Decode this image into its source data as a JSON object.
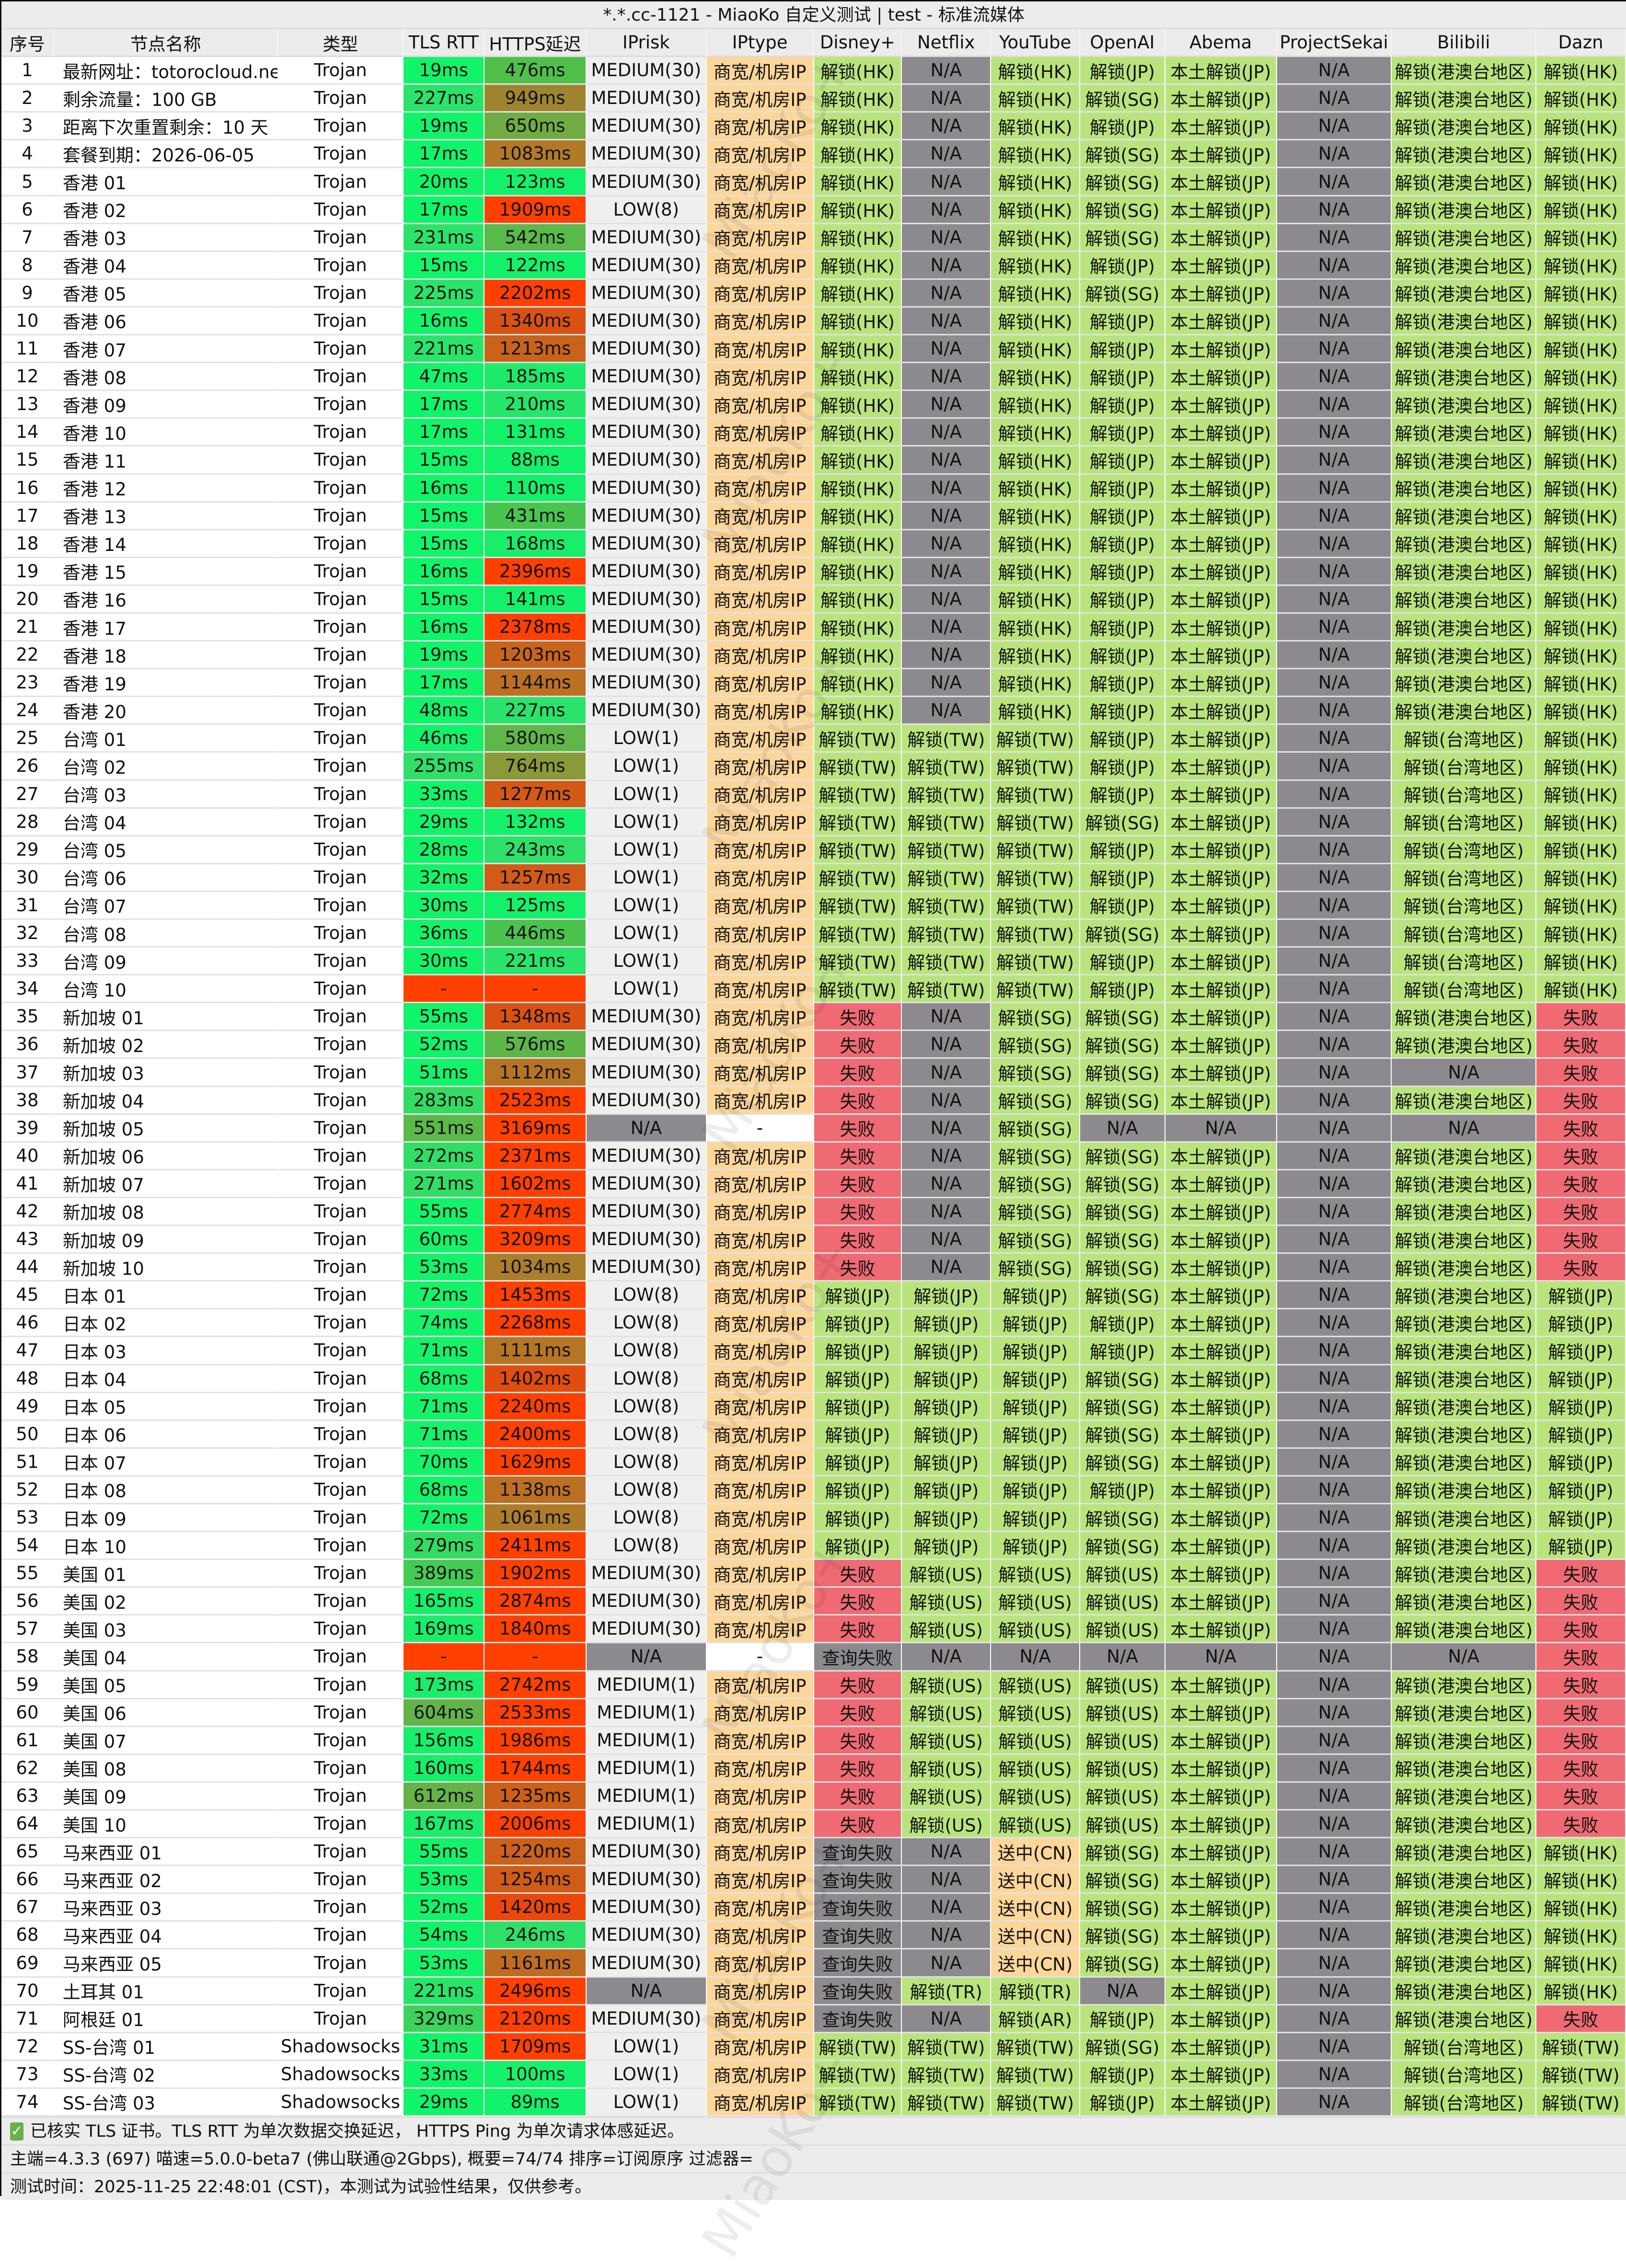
{
  "window_title": "*.*.cc-1121 - MiaoKo 自定义测试 | test - 标准流媒体",
  "watermark": "MiaoKo+",
  "colors": {
    "unlock": "#b9e47d",
    "na": "#8c8a8e",
    "fail": "#ef6a73",
    "iptype": "#fdd699",
    "iprisk": "#efefef",
    "latency_fast": "#10f56a",
    "latency_slow": "#ff4000",
    "check": "#6ab04c"
  },
  "columns": [
    "序号",
    "节点名称",
    "类型",
    "TLS RTT",
    "HTTPS延迟",
    "IPrisk",
    "IPtype",
    "Disney+",
    "Netflix",
    "YouTube",
    "OpenAI",
    "Abema",
    "ProjectSekai",
    "Bilibili",
    "Dazn"
  ],
  "rows": [
    [
      "1",
      "最新网址：totorocloud.net",
      "Trojan",
      "19ms",
      "476ms",
      "MEDIUM(30)",
      "商宽/机房IP",
      "解锁(HK)",
      "N/A",
      "解锁(HK)",
      "解锁(JP)",
      "本土解锁(JP)",
      "N/A",
      "解锁(港澳台地区)",
      "解锁(HK)"
    ],
    [
      "2",
      "剩余流量：100 GB",
      "Trojan",
      "227ms",
      "949ms",
      "MEDIUM(30)",
      "商宽/机房IP",
      "解锁(HK)",
      "N/A",
      "解锁(HK)",
      "解锁(SG)",
      "本土解锁(JP)",
      "N/A",
      "解锁(港澳台地区)",
      "解锁(HK)"
    ],
    [
      "3",
      "距离下次重置剩余：10 天",
      "Trojan",
      "19ms",
      "650ms",
      "MEDIUM(30)",
      "商宽/机房IP",
      "解锁(HK)",
      "N/A",
      "解锁(HK)",
      "解锁(JP)",
      "本土解锁(JP)",
      "N/A",
      "解锁(港澳台地区)",
      "解锁(HK)"
    ],
    [
      "4",
      "套餐到期：2026-06-05",
      "Trojan",
      "17ms",
      "1083ms",
      "MEDIUM(30)",
      "商宽/机房IP",
      "解锁(HK)",
      "N/A",
      "解锁(HK)",
      "解锁(SG)",
      "本土解锁(JP)",
      "N/A",
      "解锁(港澳台地区)",
      "解锁(HK)"
    ],
    [
      "5",
      "香港 01",
      "Trojan",
      "20ms",
      "123ms",
      "MEDIUM(30)",
      "商宽/机房IP",
      "解锁(HK)",
      "N/A",
      "解锁(HK)",
      "解锁(SG)",
      "本土解锁(JP)",
      "N/A",
      "解锁(港澳台地区)",
      "解锁(HK)"
    ],
    [
      "6",
      "香港 02",
      "Trojan",
      "17ms",
      "1909ms",
      "LOW(8)",
      "商宽/机房IP",
      "解锁(HK)",
      "N/A",
      "解锁(HK)",
      "解锁(SG)",
      "本土解锁(JP)",
      "N/A",
      "解锁(港澳台地区)",
      "解锁(HK)"
    ],
    [
      "7",
      "香港 03",
      "Trojan",
      "231ms",
      "542ms",
      "MEDIUM(30)",
      "商宽/机房IP",
      "解锁(HK)",
      "N/A",
      "解锁(HK)",
      "解锁(SG)",
      "本土解锁(JP)",
      "N/A",
      "解锁(港澳台地区)",
      "解锁(HK)"
    ],
    [
      "8",
      "香港 04",
      "Trojan",
      "15ms",
      "122ms",
      "MEDIUM(30)",
      "商宽/机房IP",
      "解锁(HK)",
      "N/A",
      "解锁(HK)",
      "解锁(JP)",
      "本土解锁(JP)",
      "N/A",
      "解锁(港澳台地区)",
      "解锁(HK)"
    ],
    [
      "9",
      "香港 05",
      "Trojan",
      "225ms",
      "2202ms",
      "MEDIUM(30)",
      "商宽/机房IP",
      "解锁(HK)",
      "N/A",
      "解锁(HK)",
      "解锁(SG)",
      "本土解锁(JP)",
      "N/A",
      "解锁(港澳台地区)",
      "解锁(HK)"
    ],
    [
      "10",
      "香港 06",
      "Trojan",
      "16ms",
      "1340ms",
      "MEDIUM(30)",
      "商宽/机房IP",
      "解锁(HK)",
      "N/A",
      "解锁(HK)",
      "解锁(JP)",
      "本土解锁(JP)",
      "N/A",
      "解锁(港澳台地区)",
      "解锁(HK)"
    ],
    [
      "11",
      "香港 07",
      "Trojan",
      "221ms",
      "1213ms",
      "MEDIUM(30)",
      "商宽/机房IP",
      "解锁(HK)",
      "N/A",
      "解锁(HK)",
      "解锁(JP)",
      "本土解锁(JP)",
      "N/A",
      "解锁(港澳台地区)",
      "解锁(HK)"
    ],
    [
      "12",
      "香港 08",
      "Trojan",
      "47ms",
      "185ms",
      "MEDIUM(30)",
      "商宽/机房IP",
      "解锁(HK)",
      "N/A",
      "解锁(HK)",
      "解锁(JP)",
      "本土解锁(JP)",
      "N/A",
      "解锁(港澳台地区)",
      "解锁(HK)"
    ],
    [
      "13",
      "香港 09",
      "Trojan",
      "17ms",
      "210ms",
      "MEDIUM(30)",
      "商宽/机房IP",
      "解锁(HK)",
      "N/A",
      "解锁(HK)",
      "解锁(JP)",
      "本土解锁(JP)",
      "N/A",
      "解锁(港澳台地区)",
      "解锁(HK)"
    ],
    [
      "14",
      "香港 10",
      "Trojan",
      "17ms",
      "131ms",
      "MEDIUM(30)",
      "商宽/机房IP",
      "解锁(HK)",
      "N/A",
      "解锁(HK)",
      "解锁(JP)",
      "本土解锁(JP)",
      "N/A",
      "解锁(港澳台地区)",
      "解锁(HK)"
    ],
    [
      "15",
      "香港 11",
      "Trojan",
      "15ms",
      "88ms",
      "MEDIUM(30)",
      "商宽/机房IP",
      "解锁(HK)",
      "N/A",
      "解锁(HK)",
      "解锁(JP)",
      "本土解锁(JP)",
      "N/A",
      "解锁(港澳台地区)",
      "解锁(HK)"
    ],
    [
      "16",
      "香港 12",
      "Trojan",
      "16ms",
      "110ms",
      "MEDIUM(30)",
      "商宽/机房IP",
      "解锁(HK)",
      "N/A",
      "解锁(HK)",
      "解锁(JP)",
      "本土解锁(JP)",
      "N/A",
      "解锁(港澳台地区)",
      "解锁(HK)"
    ],
    [
      "17",
      "香港 13",
      "Trojan",
      "15ms",
      "431ms",
      "MEDIUM(30)",
      "商宽/机房IP",
      "解锁(HK)",
      "N/A",
      "解锁(HK)",
      "解锁(JP)",
      "本土解锁(JP)",
      "N/A",
      "解锁(港澳台地区)",
      "解锁(HK)"
    ],
    [
      "18",
      "香港 14",
      "Trojan",
      "15ms",
      "168ms",
      "MEDIUM(30)",
      "商宽/机房IP",
      "解锁(HK)",
      "N/A",
      "解锁(HK)",
      "解锁(JP)",
      "本土解锁(JP)",
      "N/A",
      "解锁(港澳台地区)",
      "解锁(HK)"
    ],
    [
      "19",
      "香港 15",
      "Trojan",
      "16ms",
      "2396ms",
      "MEDIUM(30)",
      "商宽/机房IP",
      "解锁(HK)",
      "N/A",
      "解锁(HK)",
      "解锁(JP)",
      "本土解锁(JP)",
      "N/A",
      "解锁(港澳台地区)",
      "解锁(HK)"
    ],
    [
      "20",
      "香港 16",
      "Trojan",
      "15ms",
      "141ms",
      "MEDIUM(30)",
      "商宽/机房IP",
      "解锁(HK)",
      "N/A",
      "解锁(HK)",
      "解锁(JP)",
      "本土解锁(JP)",
      "N/A",
      "解锁(港澳台地区)",
      "解锁(HK)"
    ],
    [
      "21",
      "香港 17",
      "Trojan",
      "16ms",
      "2378ms",
      "MEDIUM(30)",
      "商宽/机房IP",
      "解锁(HK)",
      "N/A",
      "解锁(HK)",
      "解锁(JP)",
      "本土解锁(JP)",
      "N/A",
      "解锁(港澳台地区)",
      "解锁(HK)"
    ],
    [
      "22",
      "香港 18",
      "Trojan",
      "19ms",
      "1203ms",
      "MEDIUM(30)",
      "商宽/机房IP",
      "解锁(HK)",
      "N/A",
      "解锁(HK)",
      "解锁(JP)",
      "本土解锁(JP)",
      "N/A",
      "解锁(港澳台地区)",
      "解锁(HK)"
    ],
    [
      "23",
      "香港 19",
      "Trojan",
      "17ms",
      "1144ms",
      "MEDIUM(30)",
      "商宽/机房IP",
      "解锁(HK)",
      "N/A",
      "解锁(HK)",
      "解锁(JP)",
      "本土解锁(JP)",
      "N/A",
      "解锁(港澳台地区)",
      "解锁(HK)"
    ],
    [
      "24",
      "香港 20",
      "Trojan",
      "48ms",
      "227ms",
      "MEDIUM(30)",
      "商宽/机房IP",
      "解锁(HK)",
      "N/A",
      "解锁(HK)",
      "解锁(JP)",
      "本土解锁(JP)",
      "N/A",
      "解锁(港澳台地区)",
      "解锁(HK)"
    ],
    [
      "25",
      "台湾 01",
      "Trojan",
      "46ms",
      "580ms",
      "LOW(1)",
      "商宽/机房IP",
      "解锁(TW)",
      "解锁(TW)",
      "解锁(TW)",
      "解锁(JP)",
      "本土解锁(JP)",
      "N/A",
      "解锁(台湾地区)",
      "解锁(HK)"
    ],
    [
      "26",
      "台湾 02",
      "Trojan",
      "255ms",
      "764ms",
      "LOW(1)",
      "商宽/机房IP",
      "解锁(TW)",
      "解锁(TW)",
      "解锁(TW)",
      "解锁(JP)",
      "本土解锁(JP)",
      "N/A",
      "解锁(台湾地区)",
      "解锁(HK)"
    ],
    [
      "27",
      "台湾 03",
      "Trojan",
      "33ms",
      "1277ms",
      "LOW(1)",
      "商宽/机房IP",
      "解锁(TW)",
      "解锁(TW)",
      "解锁(TW)",
      "解锁(JP)",
      "本土解锁(JP)",
      "N/A",
      "解锁(台湾地区)",
      "解锁(HK)"
    ],
    [
      "28",
      "台湾 04",
      "Trojan",
      "29ms",
      "132ms",
      "LOW(1)",
      "商宽/机房IP",
      "解锁(TW)",
      "解锁(TW)",
      "解锁(TW)",
      "解锁(SG)",
      "本土解锁(JP)",
      "N/A",
      "解锁(台湾地区)",
      "解锁(HK)"
    ],
    [
      "29",
      "台湾 05",
      "Trojan",
      "28ms",
      "243ms",
      "LOW(1)",
      "商宽/机房IP",
      "解锁(TW)",
      "解锁(TW)",
      "解锁(TW)",
      "解锁(JP)",
      "本土解锁(JP)",
      "N/A",
      "解锁(台湾地区)",
      "解锁(HK)"
    ],
    [
      "30",
      "台湾 06",
      "Trojan",
      "32ms",
      "1257ms",
      "LOW(1)",
      "商宽/机房IP",
      "解锁(TW)",
      "解锁(TW)",
      "解锁(TW)",
      "解锁(JP)",
      "本土解锁(JP)",
      "N/A",
      "解锁(台湾地区)",
      "解锁(HK)"
    ],
    [
      "31",
      "台湾 07",
      "Trojan",
      "30ms",
      "125ms",
      "LOW(1)",
      "商宽/机房IP",
      "解锁(TW)",
      "解锁(TW)",
      "解锁(TW)",
      "解锁(JP)",
      "本土解锁(JP)",
      "N/A",
      "解锁(台湾地区)",
      "解锁(HK)"
    ],
    [
      "32",
      "台湾 08",
      "Trojan",
      "36ms",
      "446ms",
      "LOW(1)",
      "商宽/机房IP",
      "解锁(TW)",
      "解锁(TW)",
      "解锁(TW)",
      "解锁(SG)",
      "本土解锁(JP)",
      "N/A",
      "解锁(台湾地区)",
      "解锁(HK)"
    ],
    [
      "33",
      "台湾 09",
      "Trojan",
      "30ms",
      "221ms",
      "LOW(1)",
      "商宽/机房IP",
      "解锁(TW)",
      "解锁(TW)",
      "解锁(TW)",
      "解锁(JP)",
      "本土解锁(JP)",
      "N/A",
      "解锁(台湾地区)",
      "解锁(HK)"
    ],
    [
      "34",
      "台湾 10",
      "Trojan",
      "-",
      "-",
      "LOW(1)",
      "商宽/机房IP",
      "解锁(TW)",
      "解锁(TW)",
      "解锁(TW)",
      "解锁(JP)",
      "本土解锁(JP)",
      "N/A",
      "解锁(台湾地区)",
      "解锁(HK)"
    ],
    [
      "35",
      "新加坡 01",
      "Trojan",
      "55ms",
      "1348ms",
      "MEDIUM(30)",
      "商宽/机房IP",
      "失败",
      "N/A",
      "解锁(SG)",
      "解锁(SG)",
      "本土解锁(JP)",
      "N/A",
      "解锁(港澳台地区)",
      "失败"
    ],
    [
      "36",
      "新加坡 02",
      "Trojan",
      "52ms",
      "576ms",
      "MEDIUM(30)",
      "商宽/机房IP",
      "失败",
      "N/A",
      "解锁(SG)",
      "解锁(SG)",
      "本土解锁(JP)",
      "N/A",
      "解锁(港澳台地区)",
      "失败"
    ],
    [
      "37",
      "新加坡 03",
      "Trojan",
      "51ms",
      "1112ms",
      "MEDIUM(30)",
      "商宽/机房IP",
      "失败",
      "N/A",
      "解锁(SG)",
      "解锁(SG)",
      "本土解锁(JP)",
      "N/A",
      "N/A",
      "失败"
    ],
    [
      "38",
      "新加坡 04",
      "Trojan",
      "283ms",
      "2523ms",
      "MEDIUM(30)",
      "商宽/机房IP",
      "失败",
      "N/A",
      "解锁(SG)",
      "解锁(SG)",
      "本土解锁(JP)",
      "N/A",
      "解锁(港澳台地区)",
      "失败"
    ],
    [
      "39",
      "新加坡 05",
      "Trojan",
      "551ms",
      "3169ms",
      "N/A",
      "-",
      "失败",
      "N/A",
      "解锁(SG)",
      "N/A",
      "N/A",
      "N/A",
      "N/A",
      "失败"
    ],
    [
      "40",
      "新加坡 06",
      "Trojan",
      "272ms",
      "2371ms",
      "MEDIUM(30)",
      "商宽/机房IP",
      "失败",
      "N/A",
      "解锁(SG)",
      "解锁(SG)",
      "本土解锁(JP)",
      "N/A",
      "解锁(港澳台地区)",
      "失败"
    ],
    [
      "41",
      "新加坡 07",
      "Trojan",
      "271ms",
      "1602ms",
      "MEDIUM(30)",
      "商宽/机房IP",
      "失败",
      "N/A",
      "解锁(SG)",
      "解锁(SG)",
      "本土解锁(JP)",
      "N/A",
      "解锁(港澳台地区)",
      "失败"
    ],
    [
      "42",
      "新加坡 08",
      "Trojan",
      "55ms",
      "2774ms",
      "MEDIUM(30)",
      "商宽/机房IP",
      "失败",
      "N/A",
      "解锁(SG)",
      "解锁(SG)",
      "本土解锁(JP)",
      "N/A",
      "解锁(港澳台地区)",
      "失败"
    ],
    [
      "43",
      "新加坡 09",
      "Trojan",
      "60ms",
      "3209ms",
      "MEDIUM(30)",
      "商宽/机房IP",
      "失败",
      "N/A",
      "解锁(SG)",
      "解锁(SG)",
      "本土解锁(JP)",
      "N/A",
      "解锁(港澳台地区)",
      "失败"
    ],
    [
      "44",
      "新加坡 10",
      "Trojan",
      "53ms",
      "1034ms",
      "MEDIUM(30)",
      "商宽/机房IP",
      "失败",
      "N/A",
      "解锁(SG)",
      "解锁(SG)",
      "本土解锁(JP)",
      "N/A",
      "解锁(港澳台地区)",
      "失败"
    ],
    [
      "45",
      "日本 01",
      "Trojan",
      "72ms",
      "1453ms",
      "LOW(8)",
      "商宽/机房IP",
      "解锁(JP)",
      "解锁(JP)",
      "解锁(JP)",
      "解锁(SG)",
      "本土解锁(JP)",
      "N/A",
      "解锁(港澳台地区)",
      "解锁(JP)"
    ],
    [
      "46",
      "日本 02",
      "Trojan",
      "74ms",
      "2268ms",
      "LOW(8)",
      "商宽/机房IP",
      "解锁(JP)",
      "解锁(JP)",
      "解锁(JP)",
      "解锁(JP)",
      "本土解锁(JP)",
      "N/A",
      "解锁(港澳台地区)",
      "解锁(JP)"
    ],
    [
      "47",
      "日本 03",
      "Trojan",
      "71ms",
      "1111ms",
      "LOW(8)",
      "商宽/机房IP",
      "解锁(JP)",
      "解锁(JP)",
      "解锁(JP)",
      "解锁(JP)",
      "本土解锁(JP)",
      "N/A",
      "解锁(港澳台地区)",
      "解锁(JP)"
    ],
    [
      "48",
      "日本 04",
      "Trojan",
      "68ms",
      "1402ms",
      "LOW(8)",
      "商宽/机房IP",
      "解锁(JP)",
      "解锁(JP)",
      "解锁(JP)",
      "解锁(SG)",
      "本土解锁(JP)",
      "N/A",
      "解锁(港澳台地区)",
      "解锁(JP)"
    ],
    [
      "49",
      "日本 05",
      "Trojan",
      "71ms",
      "2240ms",
      "LOW(8)",
      "商宽/机房IP",
      "解锁(JP)",
      "解锁(JP)",
      "解锁(JP)",
      "解锁(SG)",
      "本土解锁(JP)",
      "N/A",
      "解锁(港澳台地区)",
      "解锁(JP)"
    ],
    [
      "50",
      "日本 06",
      "Trojan",
      "71ms",
      "2400ms",
      "LOW(8)",
      "商宽/机房IP",
      "解锁(JP)",
      "解锁(JP)",
      "解锁(JP)",
      "解锁(SG)",
      "本土解锁(JP)",
      "N/A",
      "解锁(港澳台地区)",
      "解锁(JP)"
    ],
    [
      "51",
      "日本 07",
      "Trojan",
      "70ms",
      "1629ms",
      "LOW(8)",
      "商宽/机房IP",
      "解锁(JP)",
      "解锁(JP)",
      "解锁(JP)",
      "解锁(SG)",
      "本土解锁(JP)",
      "N/A",
      "解锁(港澳台地区)",
      "解锁(JP)"
    ],
    [
      "52",
      "日本 08",
      "Trojan",
      "68ms",
      "1138ms",
      "LOW(8)",
      "商宽/机房IP",
      "解锁(JP)",
      "解锁(JP)",
      "解锁(JP)",
      "解锁(JP)",
      "本土解锁(JP)",
      "N/A",
      "解锁(港澳台地区)",
      "解锁(JP)"
    ],
    [
      "53",
      "日本 09",
      "Trojan",
      "72ms",
      "1061ms",
      "LOW(8)",
      "商宽/机房IP",
      "解锁(JP)",
      "解锁(JP)",
      "解锁(JP)",
      "解锁(SG)",
      "本土解锁(JP)",
      "N/A",
      "解锁(港澳台地区)",
      "解锁(JP)"
    ],
    [
      "54",
      "日本 10",
      "Trojan",
      "279ms",
      "2411ms",
      "LOW(8)",
      "商宽/机房IP",
      "解锁(JP)",
      "解锁(JP)",
      "解锁(JP)",
      "解锁(SG)",
      "本土解锁(JP)",
      "N/A",
      "解锁(港澳台地区)",
      "解锁(JP)"
    ],
    [
      "55",
      "美国 01",
      "Trojan",
      "389ms",
      "1902ms",
      "MEDIUM(30)",
      "商宽/机房IP",
      "失败",
      "解锁(US)",
      "解锁(US)",
      "解锁(US)",
      "本土解锁(JP)",
      "N/A",
      "解锁(港澳台地区)",
      "失败"
    ],
    [
      "56",
      "美国 02",
      "Trojan",
      "165ms",
      "2874ms",
      "MEDIUM(30)",
      "商宽/机房IP",
      "失败",
      "解锁(US)",
      "解锁(US)",
      "解锁(US)",
      "本土解锁(JP)",
      "N/A",
      "解锁(港澳台地区)",
      "失败"
    ],
    [
      "57",
      "美国 03",
      "Trojan",
      "169ms",
      "1840ms",
      "MEDIUM(30)",
      "商宽/机房IP",
      "失败",
      "解锁(US)",
      "解锁(US)",
      "解锁(US)",
      "本土解锁(JP)",
      "N/A",
      "解锁(港澳台地区)",
      "失败"
    ],
    [
      "58",
      "美国 04",
      "Trojan",
      "-",
      "-",
      "N/A",
      "-",
      "查询失败",
      "N/A",
      "N/A",
      "N/A",
      "N/A",
      "N/A",
      "N/A",
      "失败"
    ],
    [
      "59",
      "美国 05",
      "Trojan",
      "173ms",
      "2742ms",
      "MEDIUM(1)",
      "商宽/机房IP",
      "失败",
      "解锁(US)",
      "解锁(US)",
      "解锁(US)",
      "本土解锁(JP)",
      "N/A",
      "解锁(港澳台地区)",
      "失败"
    ],
    [
      "60",
      "美国 06",
      "Trojan",
      "604ms",
      "2533ms",
      "MEDIUM(1)",
      "商宽/机房IP",
      "失败",
      "解锁(US)",
      "解锁(US)",
      "解锁(US)",
      "本土解锁(JP)",
      "N/A",
      "解锁(港澳台地区)",
      "失败"
    ],
    [
      "61",
      "美国 07",
      "Trojan",
      "156ms",
      "1986ms",
      "MEDIUM(1)",
      "商宽/机房IP",
      "失败",
      "解锁(US)",
      "解锁(US)",
      "解锁(US)",
      "本土解锁(JP)",
      "N/A",
      "解锁(港澳台地区)",
      "失败"
    ],
    [
      "62",
      "美国 08",
      "Trojan",
      "160ms",
      "1744ms",
      "MEDIUM(1)",
      "商宽/机房IP",
      "失败",
      "解锁(US)",
      "解锁(US)",
      "解锁(US)",
      "本土解锁(JP)",
      "N/A",
      "解锁(港澳台地区)",
      "失败"
    ],
    [
      "63",
      "美国 09",
      "Trojan",
      "612ms",
      "1235ms",
      "MEDIUM(1)",
      "商宽/机房IP",
      "失败",
      "解锁(US)",
      "解锁(US)",
      "解锁(US)",
      "本土解锁(JP)",
      "N/A",
      "解锁(港澳台地区)",
      "失败"
    ],
    [
      "64",
      "美国 10",
      "Trojan",
      "167ms",
      "2006ms",
      "MEDIUM(1)",
      "商宽/机房IP",
      "失败",
      "解锁(US)",
      "解锁(US)",
      "解锁(US)",
      "本土解锁(JP)",
      "N/A",
      "解锁(港澳台地区)",
      "失败"
    ],
    [
      "65",
      "马来西亚 01",
      "Trojan",
      "55ms",
      "1220ms",
      "MEDIUM(30)",
      "商宽/机房IP",
      "查询失败",
      "N/A",
      "送中(CN)",
      "解锁(SG)",
      "本土解锁(JP)",
      "N/A",
      "解锁(港澳台地区)",
      "解锁(HK)"
    ],
    [
      "66",
      "马来西亚 02",
      "Trojan",
      "53ms",
      "1254ms",
      "MEDIUM(30)",
      "商宽/机房IP",
      "查询失败",
      "N/A",
      "送中(CN)",
      "解锁(SG)",
      "本土解锁(JP)",
      "N/A",
      "解锁(港澳台地区)",
      "解锁(HK)"
    ],
    [
      "67",
      "马来西亚 03",
      "Trojan",
      "52ms",
      "1420ms",
      "MEDIUM(30)",
      "商宽/机房IP",
      "查询失败",
      "N/A",
      "送中(CN)",
      "解锁(SG)",
      "本土解锁(JP)",
      "N/A",
      "解锁(港澳台地区)",
      "解锁(HK)"
    ],
    [
      "68",
      "马来西亚 04",
      "Trojan",
      "54ms",
      "246ms",
      "MEDIUM(30)",
      "商宽/机房IP",
      "查询失败",
      "N/A",
      "送中(CN)",
      "解锁(SG)",
      "本土解锁(JP)",
      "N/A",
      "解锁(港澳台地区)",
      "解锁(HK)"
    ],
    [
      "69",
      "马来西亚 05",
      "Trojan",
      "53ms",
      "1161ms",
      "MEDIUM(30)",
      "商宽/机房IP",
      "查询失败",
      "N/A",
      "送中(CN)",
      "解锁(SG)",
      "本土解锁(JP)",
      "N/A",
      "解锁(港澳台地区)",
      "解锁(HK)"
    ],
    [
      "70",
      "土耳其 01",
      "Trojan",
      "221ms",
      "2496ms",
      "N/A",
      "商宽/机房IP",
      "查询失败",
      "解锁(TR)",
      "解锁(TR)",
      "N/A",
      "本土解锁(JP)",
      "N/A",
      "解锁(港澳台地区)",
      "解锁(HK)"
    ],
    [
      "71",
      "阿根廷 01",
      "Trojan",
      "329ms",
      "2120ms",
      "MEDIUM(30)",
      "商宽/机房IP",
      "查询失败",
      "N/A",
      "解锁(AR)",
      "解锁(JP)",
      "本土解锁(JP)",
      "N/A",
      "解锁(港澳台地区)",
      "失败"
    ],
    [
      "72",
      "SS-台湾 01",
      "Shadowsocks",
      "31ms",
      "1709ms",
      "LOW(1)",
      "商宽/机房IP",
      "解锁(TW)",
      "解锁(TW)",
      "解锁(TW)",
      "解锁(SG)",
      "本土解锁(JP)",
      "N/A",
      "解锁(台湾地区)",
      "解锁(TW)"
    ],
    [
      "73",
      "SS-台湾 02",
      "Shadowsocks",
      "33ms",
      "100ms",
      "LOW(1)",
      "商宽/机房IP",
      "解锁(TW)",
      "解锁(TW)",
      "解锁(TW)",
      "解锁(JP)",
      "本土解锁(JP)",
      "N/A",
      "解锁(台湾地区)",
      "解锁(TW)"
    ],
    [
      "74",
      "SS-台湾 03",
      "Shadowsocks",
      "29ms",
      "89ms",
      "LOW(1)",
      "商宽/机房IP",
      "解锁(TW)",
      "解锁(TW)",
      "解锁(TW)",
      "解锁(JP)",
      "本土解锁(JP)",
      "N/A",
      "解锁(台湾地区)",
      "解锁(TW)"
    ]
  ],
  "footer": {
    "check_icon": "check-icon",
    "line1": "已核实 TLS 证书。TLS RTT 为单次数据交换延迟， HTTPS Ping 为单次请求体感延迟。",
    "line2": "主端=4.3.3 (697) 喵速=5.0.0-beta7 (佛山联通@2Gbps), 概要=74/74 排序=订阅原序 过滤器=",
    "line3": "测试时间：2025-11-25 22:48:01 (CST)，本测试为试验性结果，仅供参考。"
  }
}
